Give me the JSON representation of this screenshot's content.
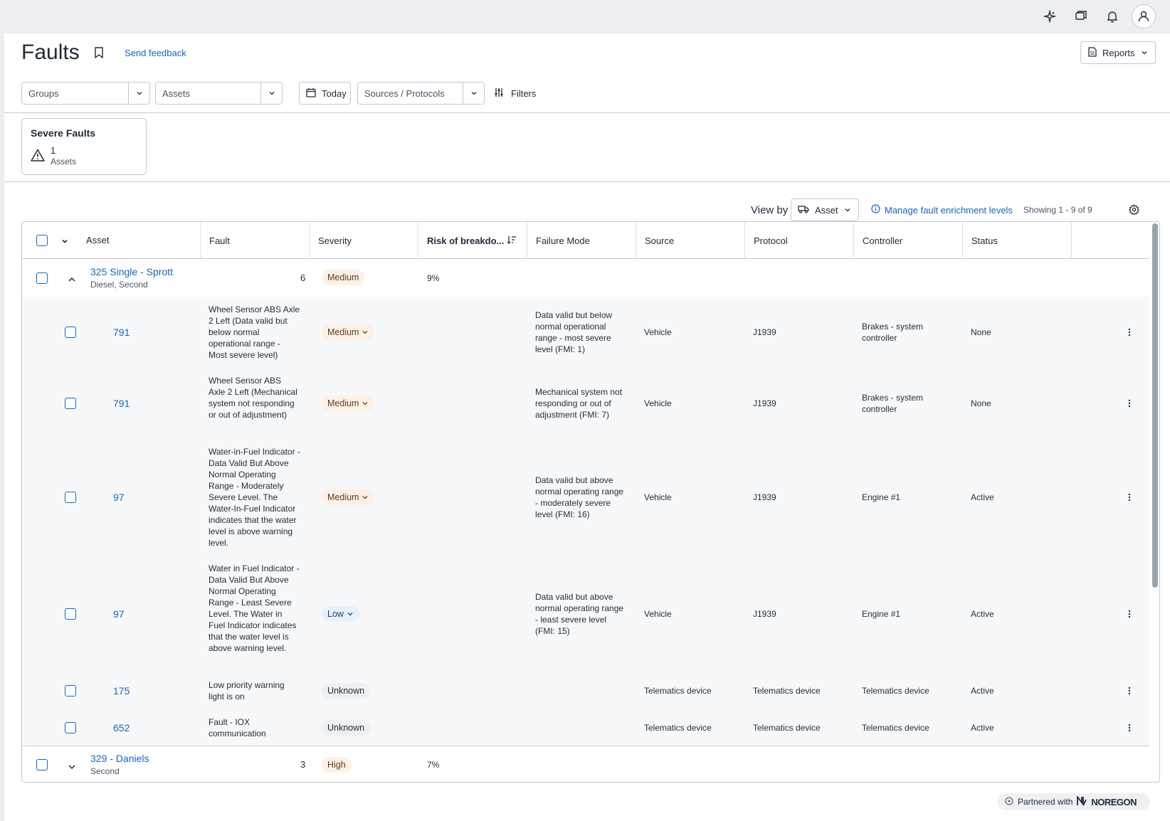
{
  "topbar": {
    "icons": [
      "sparkle-icon",
      "chat-icon",
      "bell-icon",
      "user-icon"
    ]
  },
  "header": {
    "title": "Faults",
    "feedback": "Send feedback",
    "reports": "Reports"
  },
  "filters": {
    "groups_placeholder": "Groups",
    "assets_placeholder": "Assets",
    "date": "Today",
    "sources_placeholder": "Sources / Protocols",
    "filters_label": "Filters"
  },
  "summary_card": {
    "title": "Severe Faults",
    "count": "1",
    "unit": "Assets"
  },
  "toolbar": {
    "view_by_label": "View by",
    "view_by_value": "Asset",
    "manage_link": "Manage fault enrichment levels",
    "showing": "Showing 1 - 9 of 9"
  },
  "table": {
    "columns": [
      "Asset",
      "Fault",
      "Severity",
      "Risk of breakdo...",
      "Failure Mode",
      "Source",
      "Protocol",
      "Controller",
      "Status"
    ],
    "groups": [
      {
        "name": "325 Single - Sprott",
        "sub": "Diesel, Second",
        "count": "6",
        "severity": "Medium",
        "risk": "9%",
        "expanded": true,
        "faults": [
          {
            "code": "791",
            "fault": "Wheel Sensor ABS Axle 2 Left (Data valid but below normal operational range - Most severe level)",
            "severity": "Medium",
            "failure_mode": "Data valid but below normal operational range - most severe level (FMI: 1)",
            "source": "Vehicle",
            "protocol": "J1939",
            "controller": "Brakes - system controller",
            "status": "None"
          },
          {
            "code": "791",
            "fault": "Wheel Sensor ABS Axle 2 Left (Mechanical system not responding or out of adjustment)",
            "severity": "Medium",
            "failure_mode": "Mechanical system not responding or out of adjustment (FMI: 7)",
            "source": "Vehicle",
            "protocol": "J1939",
            "controller": "Brakes - system controller",
            "status": "None"
          },
          {
            "code": "97",
            "fault": "Water-in-Fuel Indicator - Data Valid But Above Normal Operating Range - Moderately Severe Level.  The Water-In-Fuel Indicator indicates that the water level is above warning level.",
            "severity": "Medium",
            "failure_mode": "Data valid but above normal operating range - moderately severe level (FMI: 16)",
            "source": "Vehicle",
            "protocol": "J1939",
            "controller": "Engine #1",
            "status": "Active"
          },
          {
            "code": "97",
            "fault": "Water in Fuel Indicator - Data Valid But Above Normal Operating Range - Least Severe Level. The Water in Fuel Indicator indicates that the water level is above warning level.",
            "severity": "Low",
            "failure_mode": "Data valid but above normal operating range - least severe level (FMI: 15)",
            "source": "Vehicle",
            "protocol": "J1939",
            "controller": "Engine #1",
            "status": "Active"
          },
          {
            "code": "175",
            "fault": "Low priority warning light is on",
            "severity": "Unknown",
            "failure_mode": "",
            "source": "Telematics device",
            "protocol": "Telematics device",
            "controller": "Telematics device",
            "status": "Active"
          },
          {
            "code": "652",
            "fault": "Fault - IOX communication",
            "severity": "Unknown",
            "failure_mode": "",
            "source": "Telematics device",
            "protocol": "Telematics device",
            "controller": "Telematics device",
            "status": "Active"
          }
        ]
      },
      {
        "name": "329 - Daniels",
        "sub": "Second",
        "count": "3",
        "severity": "High",
        "risk": "7%",
        "expanded": false
      }
    ]
  },
  "footer": {
    "partner_label": "Partnered with",
    "partner_name": "NOREGON"
  },
  "colors": {
    "link": "#1565c0",
    "medium_badge_bg": "#fdf1e6",
    "low_badge_bg": "#e6f1fc",
    "unknown_badge_bg": "#eef0f3"
  }
}
